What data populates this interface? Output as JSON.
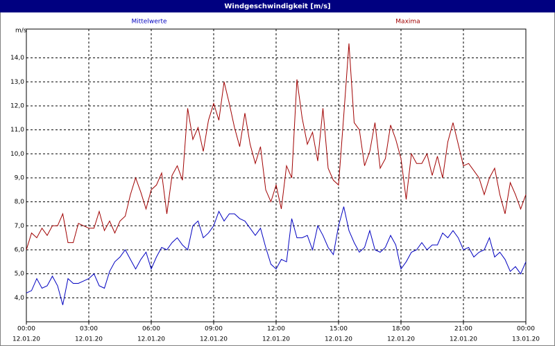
{
  "chart_data": {
    "type": "line",
    "title": "Windgeschwindigkeit [m/s]",
    "y_label": "m/s",
    "x": [
      0,
      0.25,
      0.5,
      0.75,
      1,
      1.25,
      1.5,
      1.75,
      2,
      2.25,
      2.5,
      2.75,
      3,
      3.25,
      3.5,
      3.75,
      4,
      4.25,
      4.5,
      4.75,
      5,
      5.25,
      5.5,
      5.75,
      6,
      6.25,
      6.5,
      6.75,
      7,
      7.25,
      7.5,
      7.75,
      8,
      8.25,
      8.5,
      8.75,
      9,
      9.25,
      9.5,
      9.75,
      10,
      10.25,
      10.5,
      10.75,
      11,
      11.25,
      11.5,
      11.75,
      12,
      12.25,
      12.5,
      12.75,
      13,
      13.25,
      13.5,
      13.75,
      14,
      14.25,
      14.5,
      14.75,
      15,
      15.25,
      15.5,
      15.75,
      16,
      16.25,
      16.5,
      16.75,
      17,
      17.25,
      17.5,
      17.75,
      18,
      18.25,
      18.5,
      18.75,
      19,
      19.25,
      19.5,
      19.75,
      20,
      20.25,
      20.5,
      20.75,
      21,
      21.25,
      21.5,
      21.75,
      22,
      22.25,
      22.5,
      22.75,
      23,
      23.25,
      23.5,
      23.75,
      24
    ],
    "series": [
      {
        "name": "Mittelwerte",
        "color": "#0000c0",
        "values": [
          4.2,
          4.3,
          4.8,
          4.4,
          4.5,
          4.9,
          4.5,
          3.7,
          4.8,
          4.6,
          4.6,
          4.7,
          4.8,
          5.0,
          4.5,
          4.4,
          5.1,
          5.5,
          5.7,
          6.0,
          5.6,
          5.2,
          5.6,
          5.9,
          5.2,
          5.7,
          6.1,
          6.0,
          6.3,
          6.5,
          6.2,
          6.0,
          7.0,
          7.2,
          6.5,
          6.7,
          7.0,
          7.6,
          7.2,
          7.5,
          7.5,
          7.3,
          7.2,
          6.9,
          6.6,
          6.9,
          6.1,
          5.4,
          5.2,
          5.6,
          5.5,
          7.3,
          6.5,
          6.5,
          6.6,
          6.0,
          7.0,
          6.6,
          6.1,
          5.8,
          7.0,
          7.8,
          6.8,
          6.3,
          5.9,
          6.1,
          6.8,
          6.0,
          5.9,
          6.1,
          6.6,
          6.2,
          5.2,
          5.5,
          5.9,
          6.0,
          6.3,
          6.0,
          6.2,
          6.2,
          6.7,
          6.5,
          6.8,
          6.5,
          6.0,
          6.1,
          5.7,
          5.9,
          6.0,
          6.5,
          5.7,
          5.9,
          5.6,
          5.1,
          5.3,
          5.0,
          5.5
        ]
      },
      {
        "name": "Maxima",
        "color": "#a00000",
        "values": [
          6.0,
          6.7,
          6.5,
          6.9,
          6.6,
          7.0,
          7.0,
          7.5,
          6.3,
          6.3,
          7.1,
          7.0,
          6.9,
          6.9,
          7.6,
          6.8,
          7.2,
          6.7,
          7.2,
          7.4,
          8.3,
          9.0,
          8.4,
          7.7,
          8.5,
          8.7,
          9.2,
          7.5,
          9.1,
          9.5,
          8.9,
          11.9,
          10.6,
          11.1,
          10.1,
          11.4,
          12.1,
          11.4,
          13.0,
          12.1,
          11.1,
          10.3,
          11.7,
          10.4,
          9.6,
          10.3,
          8.5,
          8.0,
          8.7,
          7.7,
          9.5,
          9.0,
          13.1,
          11.5,
          10.4,
          10.9,
          9.7,
          11.9,
          9.4,
          8.9,
          8.7,
          11.6,
          14.6,
          11.3,
          11.0,
          9.5,
          10.1,
          11.3,
          9.4,
          9.8,
          11.2,
          10.6,
          9.8,
          8.1,
          10.0,
          9.6,
          9.6,
          10.0,
          9.1,
          9.9,
          9.0,
          10.5,
          11.3,
          10.4,
          9.5,
          9.6,
          9.3,
          9.0,
          8.3,
          9.0,
          9.4,
          8.3,
          7.5,
          8.8,
          8.3,
          7.7,
          8.3
        ]
      }
    ],
    "xlim": [
      0,
      24
    ],
    "xticks": [
      {
        "value": 0,
        "label": "00:00"
      },
      {
        "value": 3,
        "label": "03:00"
      },
      {
        "value": 6,
        "label": "06:00"
      },
      {
        "value": 9,
        "label": "09:00"
      },
      {
        "value": 12,
        "label": "12:00"
      },
      {
        "value": 15,
        "label": "15:00"
      },
      {
        "value": 18,
        "label": "18:00"
      },
      {
        "value": 21,
        "label": "21:00"
      },
      {
        "value": 24,
        "label": "00:00"
      }
    ],
    "xtick_dates": [
      "12.01.20",
      "12.01.20",
      "12.01.20",
      "12.01.20",
      "12.01.20",
      "12.01.20",
      "12.01.20",
      "12.01.20",
      "13.01.20"
    ],
    "ylim": [
      3,
      15.2
    ],
    "yticks": [
      {
        "value": 4,
        "label": "4,0"
      },
      {
        "value": 5,
        "label": "5,0"
      },
      {
        "value": 6,
        "label": "6,0"
      },
      {
        "value": 7,
        "label": "7,0"
      },
      {
        "value": 8,
        "label": "8,0"
      },
      {
        "value": 9,
        "label": "9,0"
      },
      {
        "value": 10,
        "label": "10,0"
      },
      {
        "value": 11,
        "label": "11,0"
      },
      {
        "value": 12,
        "label": "12,0"
      },
      {
        "value": 13,
        "label": "13,0"
      },
      {
        "value": 14,
        "label": "14,0"
      }
    ],
    "grid": true
  }
}
